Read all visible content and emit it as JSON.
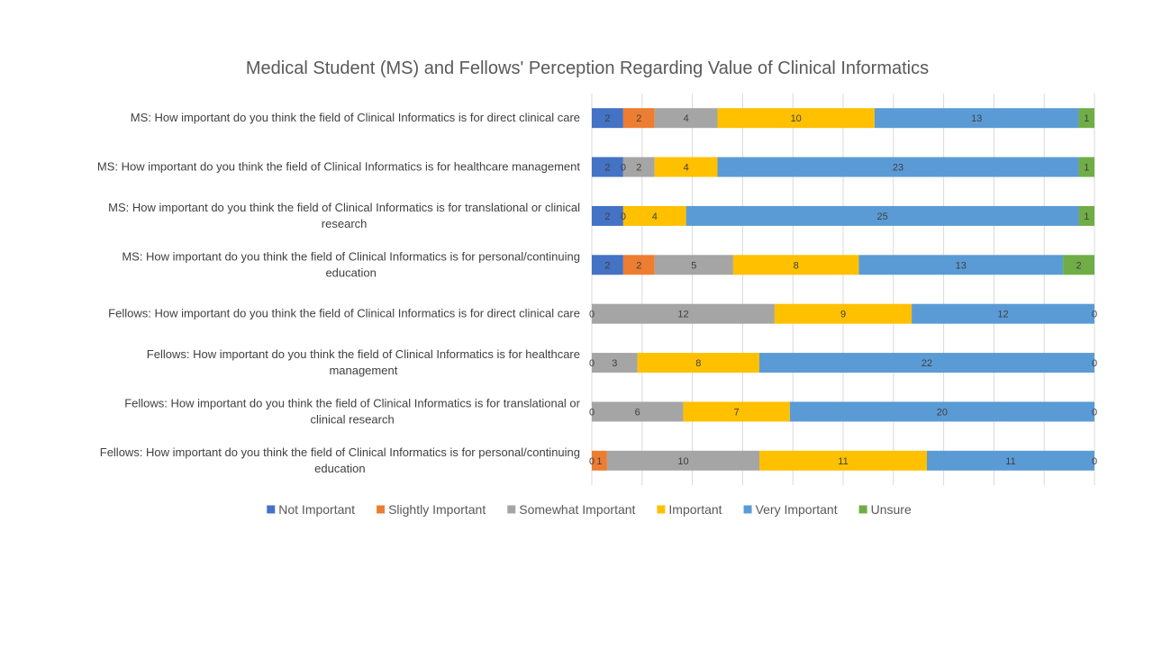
{
  "chart_data": {
    "type": "bar",
    "orientation": "horizontal",
    "stacked": "percent",
    "title": "Medical Student (MS) and Fellows' Perception Regarding Value of Clinical Informatics",
    "categories": [
      [
        "MS: How important do you think the field of Clinical Informatics is for direct clinical care"
      ],
      [
        "MS: How important do you think the field of Clinical Informatics is for healthcare management"
      ],
      [
        "MS: How important do you think the field of Clinical Informatics is for translational or clinical",
        "research"
      ],
      [
        "MS:  How important do you think the field of Clinical Informatics is for personal/continuing",
        "education"
      ],
      [
        "Fellows: How important do you think the field of Clinical Informatics is for direct clinical care"
      ],
      [
        "Fellows: How important do you think the field of Clinical Informatics is for healthcare",
        "management"
      ],
      [
        "Fellows: How important do you think the field of Clinical Informatics is for translational or",
        "clinical research"
      ],
      [
        "Fellows: How important do you think the field of Clinical Informatics is for personal/continuing",
        "education"
      ]
    ],
    "series": [
      {
        "name": "Not Important",
        "color": "#4472C4",
        "values": [
          2,
          2,
          2,
          2,
          0,
          0,
          0,
          0
        ],
        "labels": [
          "2",
          "2",
          "2",
          "2",
          "0",
          "0",
          "0",
          "0"
        ]
      },
      {
        "name": "Slightly Important",
        "color": "#ED7D31",
        "values": [
          2,
          0,
          0,
          2,
          null,
          null,
          null,
          1
        ],
        "labels": [
          "2",
          "0",
          "0",
          "2",
          null,
          null,
          null,
          "1"
        ]
      },
      {
        "name": "Somewhat Important",
        "color": "#A5A5A5",
        "values": [
          4,
          2,
          null,
          5,
          12,
          3,
          6,
          10
        ],
        "labels": [
          "4",
          "2",
          null,
          "5",
          "12",
          "3",
          "6",
          "10"
        ]
      },
      {
        "name": "Important",
        "color": "#FFC000",
        "values": [
          10,
          4,
          4,
          8,
          9,
          8,
          7,
          11
        ],
        "labels": [
          "10",
          "4",
          "4",
          "8",
          "9",
          "8",
          "7",
          "11"
        ]
      },
      {
        "name": "Very Important",
        "color": "#5B9BD5",
        "values": [
          13,
          23,
          25,
          13,
          12,
          22,
          20,
          11
        ],
        "labels": [
          "13",
          "23",
          "25",
          "13",
          "12",
          "22",
          "20",
          "11"
        ]
      },
      {
        "name": "Unsure",
        "color": "#70AD47",
        "values": [
          1,
          1,
          1,
          2,
          0,
          0,
          0,
          0
        ],
        "labels": [
          "1",
          "1",
          "1",
          "2",
          "0",
          "0",
          "0",
          "0"
        ]
      }
    ],
    "xlim": [
      0,
      100
    ],
    "grid": true,
    "legend_position": "bottom"
  }
}
